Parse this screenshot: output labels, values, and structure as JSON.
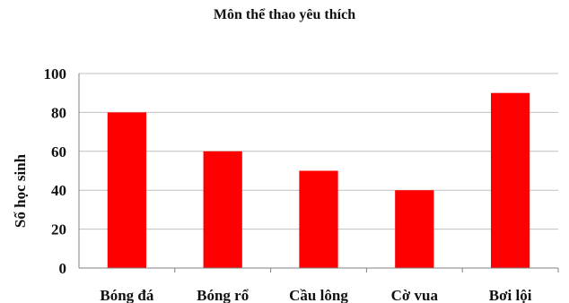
{
  "chart_data": {
    "type": "bar",
    "title": "Môn thể thao yêu thích",
    "xlabel": "",
    "ylabel": "Số học sinh",
    "categories": [
      "Bóng đá",
      "Bóng rổ",
      "Cầu lông",
      "Cờ vua",
      "Bơi lội"
    ],
    "values": [
      80,
      60,
      50,
      40,
      90
    ],
    "ylim": [
      0,
      100
    ],
    "yticks": [
      "0",
      "20",
      "40",
      "60",
      "80",
      "100"
    ],
    "grid": true,
    "bar_color": "#ff0000",
    "grid_color": "#c0c0c0"
  }
}
